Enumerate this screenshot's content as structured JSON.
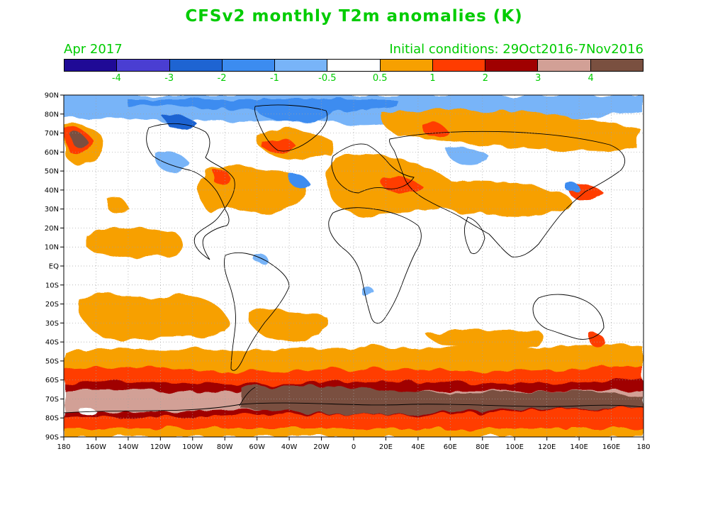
{
  "title": "CFSv2 monthly T2m anomalies (K)",
  "valid_month": "Apr 2017",
  "initial_conditions": "Initial conditions: 29Oct2016-7Nov2016",
  "colorbar": {
    "colors": [
      "#1f0a96",
      "#4a3ed2",
      "#1e64d2",
      "#3c8cf0",
      "#78b4f8",
      "#ffffff",
      "#f7a000",
      "#ff3c00",
      "#a00000",
      "#d2a096",
      "#7a5040"
    ],
    "labels": [
      "-4",
      "-3",
      "-2",
      "-1",
      "-0.5",
      "0.5",
      "1",
      "2",
      "3",
      "4"
    ]
  },
  "axes": {
    "lon_labels": [
      "180",
      "160W",
      "140W",
      "120W",
      "100W",
      "80W",
      "60W",
      "40W",
      "20W",
      "0",
      "20E",
      "40E",
      "60E",
      "80E",
      "100E",
      "120E",
      "140E",
      "160E",
      "180"
    ],
    "lat_labels": [
      "90N",
      "80N",
      "70N",
      "60N",
      "50N",
      "40N",
      "30N",
      "20N",
      "10N",
      "EQ",
      "10S",
      "20S",
      "30S",
      "40S",
      "50S",
      "60S",
      "70S",
      "80S",
      "90S"
    ]
  },
  "colors": {
    "text_green": "#00cc00",
    "cool_light": "#78b4f8",
    "cool_mid": "#3c8cf0",
    "warm_orange": "#f7a000",
    "warm_red": "#ff3c00",
    "dark_red": "#a00000",
    "pink_brown": "#d2a096",
    "dark_brown": "#7a5040"
  }
}
